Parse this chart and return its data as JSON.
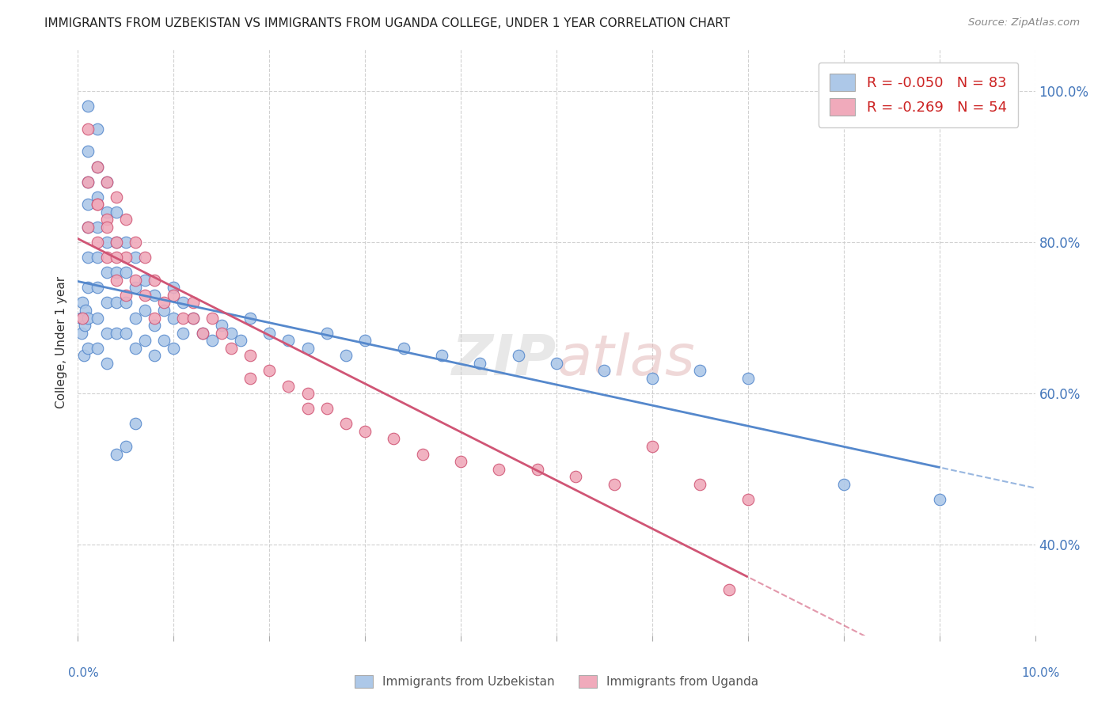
{
  "title": "IMMIGRANTS FROM UZBEKISTAN VS IMMIGRANTS FROM UGANDA COLLEGE, UNDER 1 YEAR CORRELATION CHART",
  "source": "Source: ZipAtlas.com",
  "ylabel": "College, Under 1 year",
  "legend_entry1": "R = -0.050   N = 83",
  "legend_entry2": "R = -0.269   N = 54",
  "color_uzbekistan": "#adc8e8",
  "color_uganda": "#f0aabb",
  "line_color_uzbekistan": "#5588cc",
  "line_color_uganda": "#d05575",
  "xmin": 0.0,
  "xmax": 0.1,
  "ymin": 0.28,
  "ymax": 1.055,
  "yticks": [
    0.4,
    0.6,
    0.8,
    1.0
  ],
  "ytick_labels": [
    "40.0%",
    "60.0%",
    "80.0%",
    "100.0%"
  ],
  "background_color": "#ffffff",
  "grid_color": "#cccccc",
  "uzb_x": [
    0.0003,
    0.0004,
    0.0005,
    0.0006,
    0.0007,
    0.0008,
    0.001,
    0.001,
    0.001,
    0.001,
    0.001,
    0.001,
    0.001,
    0.001,
    0.001,
    0.002,
    0.002,
    0.002,
    0.002,
    0.002,
    0.002,
    0.002,
    0.002,
    0.003,
    0.003,
    0.003,
    0.003,
    0.003,
    0.003,
    0.003,
    0.004,
    0.004,
    0.004,
    0.004,
    0.004,
    0.005,
    0.005,
    0.005,
    0.005,
    0.006,
    0.006,
    0.006,
    0.006,
    0.007,
    0.007,
    0.007,
    0.008,
    0.008,
    0.008,
    0.009,
    0.009,
    0.01,
    0.01,
    0.01,
    0.011,
    0.011,
    0.012,
    0.013,
    0.014,
    0.015,
    0.016,
    0.017,
    0.018,
    0.02,
    0.022,
    0.024,
    0.026,
    0.028,
    0.03,
    0.034,
    0.038,
    0.042,
    0.046,
    0.05,
    0.055,
    0.06,
    0.065,
    0.07,
    0.08,
    0.09,
    0.004,
    0.005,
    0.006
  ],
  "uzb_y": [
    0.7,
    0.68,
    0.72,
    0.65,
    0.69,
    0.71,
    0.98,
    0.92,
    0.88,
    0.85,
    0.82,
    0.78,
    0.74,
    0.7,
    0.66,
    0.95,
    0.9,
    0.86,
    0.82,
    0.78,
    0.74,
    0.7,
    0.66,
    0.88,
    0.84,
    0.8,
    0.76,
    0.72,
    0.68,
    0.64,
    0.84,
    0.8,
    0.76,
    0.72,
    0.68,
    0.8,
    0.76,
    0.72,
    0.68,
    0.78,
    0.74,
    0.7,
    0.66,
    0.75,
    0.71,
    0.67,
    0.73,
    0.69,
    0.65,
    0.71,
    0.67,
    0.74,
    0.7,
    0.66,
    0.72,
    0.68,
    0.7,
    0.68,
    0.67,
    0.69,
    0.68,
    0.67,
    0.7,
    0.68,
    0.67,
    0.66,
    0.68,
    0.65,
    0.67,
    0.66,
    0.65,
    0.64,
    0.65,
    0.64,
    0.63,
    0.62,
    0.63,
    0.62,
    0.48,
    0.46,
    0.52,
    0.53,
    0.56
  ],
  "uga_x": [
    0.0005,
    0.001,
    0.001,
    0.001,
    0.002,
    0.002,
    0.002,
    0.003,
    0.003,
    0.003,
    0.004,
    0.004,
    0.004,
    0.005,
    0.005,
    0.005,
    0.006,
    0.006,
    0.007,
    0.007,
    0.008,
    0.008,
    0.009,
    0.01,
    0.011,
    0.012,
    0.013,
    0.014,
    0.015,
    0.016,
    0.018,
    0.02,
    0.022,
    0.024,
    0.026,
    0.028,
    0.03,
    0.033,
    0.036,
    0.04,
    0.044,
    0.048,
    0.052,
    0.056,
    0.06,
    0.065,
    0.07,
    0.002,
    0.003,
    0.004,
    0.012,
    0.018,
    0.024,
    0.068
  ],
  "uga_y": [
    0.7,
    0.95,
    0.88,
    0.82,
    0.9,
    0.85,
    0.8,
    0.88,
    0.83,
    0.78,
    0.86,
    0.8,
    0.75,
    0.83,
    0.78,
    0.73,
    0.8,
    0.75,
    0.78,
    0.73,
    0.75,
    0.7,
    0.72,
    0.73,
    0.7,
    0.72,
    0.68,
    0.7,
    0.68,
    0.66,
    0.65,
    0.63,
    0.61,
    0.6,
    0.58,
    0.56,
    0.55,
    0.54,
    0.52,
    0.51,
    0.5,
    0.5,
    0.49,
    0.48,
    0.53,
    0.48,
    0.46,
    0.85,
    0.82,
    0.78,
    0.7,
    0.62,
    0.58,
    0.34
  ]
}
